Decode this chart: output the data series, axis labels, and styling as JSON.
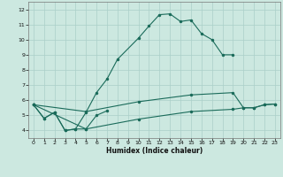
{
  "xlabel": "Humidex (Indice chaleur)",
  "xlim": [
    -0.5,
    23.5
  ],
  "ylim": [
    3.5,
    12.5
  ],
  "xticks": [
    0,
    1,
    2,
    3,
    4,
    5,
    6,
    7,
    8,
    9,
    10,
    11,
    12,
    13,
    14,
    15,
    16,
    17,
    18,
    19,
    20,
    21,
    22,
    23
  ],
  "yticks": [
    4,
    5,
    6,
    7,
    8,
    9,
    10,
    11,
    12
  ],
  "bg_color": "#cce8e0",
  "grid_color": "#aacfc8",
  "line_color": "#1a6b5a",
  "curve1_x": [
    0,
    1,
    2,
    3,
    4,
    5,
    6,
    7,
    8,
    10,
    11,
    12,
    13,
    14,
    15,
    16,
    17,
    18,
    19
  ],
  "curve1_y": [
    5.7,
    4.8,
    5.2,
    4.0,
    4.1,
    5.2,
    6.5,
    7.4,
    8.7,
    10.1,
    10.9,
    11.65,
    11.7,
    11.2,
    11.3,
    10.4,
    10.0,
    9.0,
    9.0
  ],
  "curve2_x": [
    0,
    1,
    2,
    3,
    4,
    5,
    6,
    7
  ],
  "curve2_y": [
    5.7,
    4.8,
    5.2,
    4.0,
    4.1,
    4.1,
    5.0,
    5.3
  ],
  "curve3_x": [
    0,
    5,
    10,
    15,
    19,
    20,
    21,
    22,
    23
  ],
  "curve3_y": [
    5.7,
    5.25,
    5.9,
    6.35,
    6.5,
    5.5,
    5.5,
    5.7,
    5.75
  ],
  "curve4_x": [
    0,
    5,
    10,
    15,
    19,
    20,
    21,
    22,
    23
  ],
  "curve4_y": [
    5.7,
    4.1,
    4.75,
    5.25,
    5.4,
    5.5,
    5.5,
    5.7,
    5.75
  ],
  "marker_size": 2.5
}
